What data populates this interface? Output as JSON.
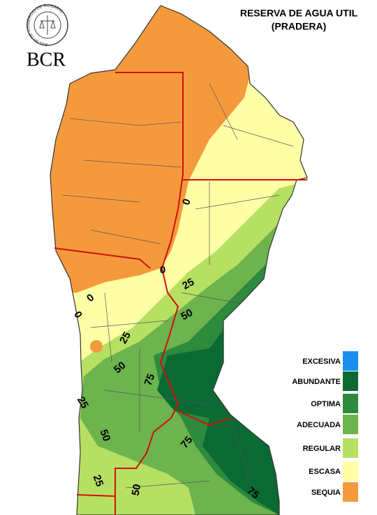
{
  "header": {
    "logo_ring": "BOLSA DE COMERCIO DE ROSARIO",
    "logo_text": "BCR",
    "title": "RESERVA DE AGUA UTIL",
    "subtitle": "(PRADERA)"
  },
  "legend": [
    {
      "label": "EXCESIVA",
      "color": "#1a8fef"
    },
    {
      "label": "ABUNDANTE",
      "color": "#0b6a33"
    },
    {
      "label": "OPTIMA",
      "color": "#2e8a3c"
    },
    {
      "label": "ADECUADA",
      "color": "#6db34e"
    },
    {
      "label": "REGULAR",
      "color": "#b6e062"
    },
    {
      "label": "ESCASA",
      "color": "#ffffa6"
    },
    {
      "label": "SEQUIA",
      "color": "#f59a3c"
    }
  ],
  "contour_labels": [
    0,
    0,
    0,
    0,
    25,
    25,
    25,
    25,
    50,
    50,
    50,
    50,
    75,
    75,
    75
  ]
}
